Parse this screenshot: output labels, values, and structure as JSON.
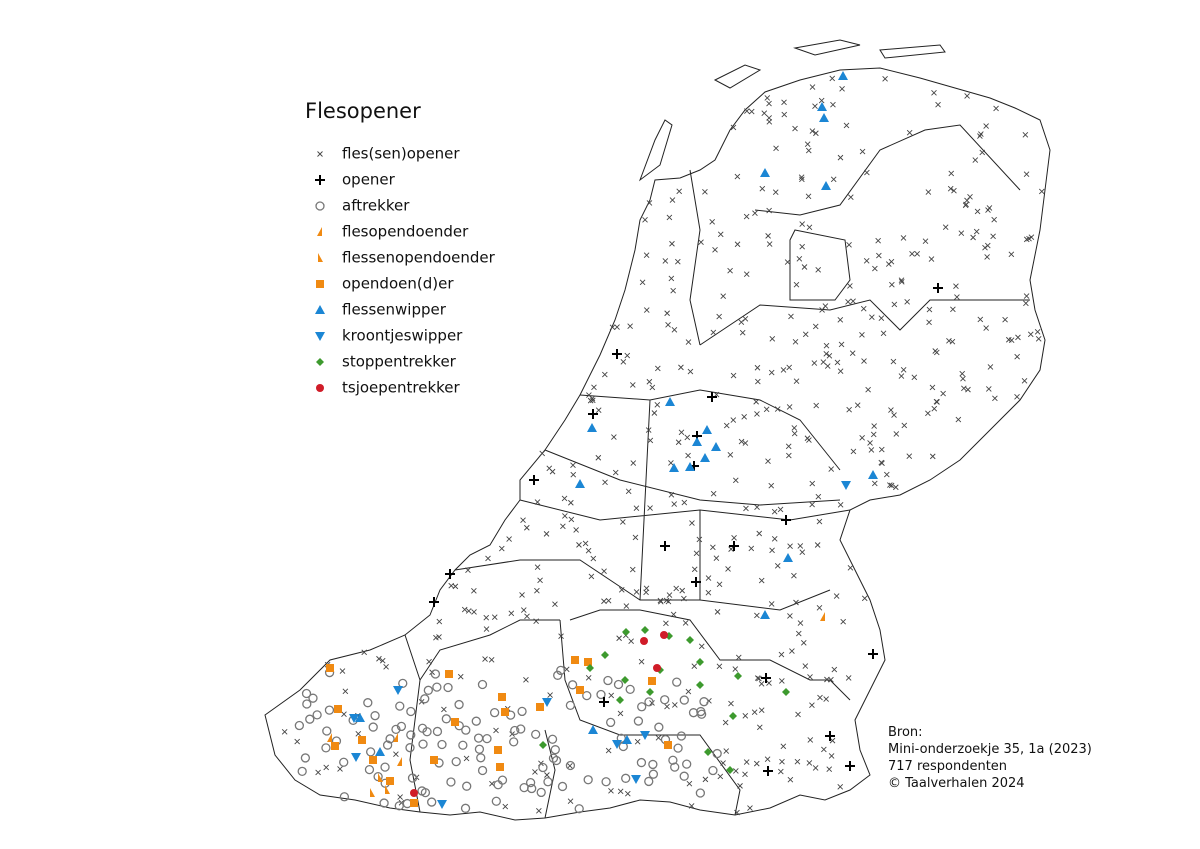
{
  "title": "Flesopener",
  "legend": [
    "fles(sen)opener",
    "opener",
    "aftrekker",
    "flesopendoender",
    "flessenopendoender",
    "opendoen(d)er",
    "flessenwipper",
    "kroontjeswipper",
    "stoppentrekker",
    "tsjoepentrekker"
  ],
  "source": [
    "Bron:",
    "Mini-onderzoekje 35, 1a (2023)",
    "717 respondenten",
    "© Taalverhalen 2024"
  ]
}
